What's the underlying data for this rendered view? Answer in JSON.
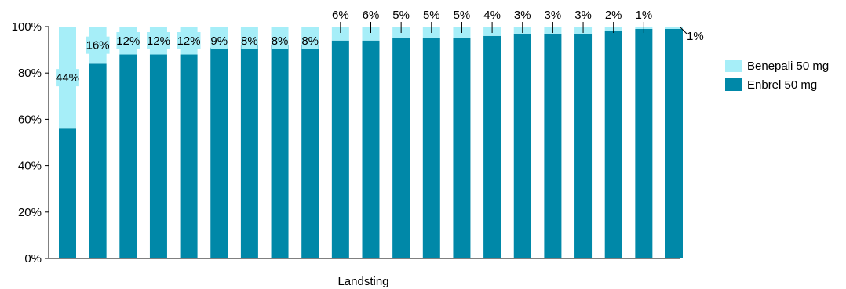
{
  "chart_data": {
    "type": "bar",
    "stacked": true,
    "percent": true,
    "categories": [
      "",
      "",
      "",
      "",
      "",
      "",
      "",
      "",
      "",
      "",
      "",
      "",
      "",
      "",
      "",
      "",
      "",
      "",
      "",
      "",
      ""
    ],
    "series": [
      {
        "name": "Enbrel 50 mg",
        "color": "#0088A8",
        "values": [
          56,
          84,
          88,
          88,
          88,
          91,
          92,
          92,
          92,
          94,
          94,
          95,
          95,
          95,
          96,
          97,
          97,
          97,
          98,
          99,
          99
        ]
      },
      {
        "name": "Benepali 50 mg",
        "color": "#A6EEF8",
        "values": [
          44,
          16,
          12,
          12,
          12,
          9,
          8,
          8,
          8,
          6,
          6,
          5,
          5,
          5,
          4,
          3,
          3,
          3,
          2,
          1,
          1
        ]
      }
    ],
    "data_labels": [
      "44%",
      "16%",
      "12%",
      "12%",
      "12%",
      "9%",
      "8%",
      "8%",
      "8%",
      "6%",
      "6%",
      "5%",
      "5%",
      "5%",
      "4%",
      "3%",
      "3%",
      "3%",
      "2%",
      "1%",
      "1%"
    ],
    "title": "",
    "xlabel": "Landsting",
    "ylabel": "",
    "ylim": [
      0,
      100
    ],
    "yticks": [
      "0%",
      "20%",
      "40%",
      "60%",
      "80%",
      "100%"
    ],
    "grid": false,
    "legend_position": "right"
  }
}
